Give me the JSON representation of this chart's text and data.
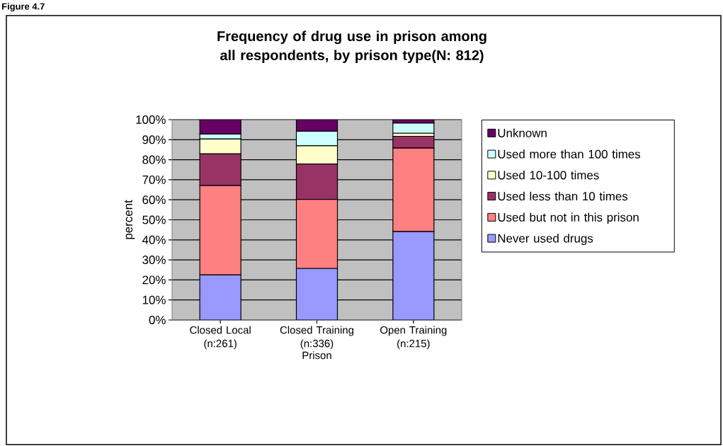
{
  "chart_data": {
    "type": "bar",
    "stacked": true,
    "title": "Frequency of drug use in prison among all respondents, by prison type(N: 812)",
    "xlabel": "Prison",
    "ylabel": "percent",
    "annotations": [
      "Figure 4.7"
    ],
    "categories": [
      "Closed Local (n:261)",
      "Closed Training (n:336)",
      "Open Training (n:215)"
    ],
    "series": [
      {
        "name": "Never used drugs",
        "color": "#9999ff",
        "values": [
          22.5,
          25.7,
          44.1
        ]
      },
      {
        "name": "Used but not in this prison",
        "color": "#ff8080",
        "values": [
          44.6,
          34.5,
          41.7
        ]
      },
      {
        "name": "Used less than 10 times",
        "color": "#993366",
        "values": [
          15.8,
          17.7,
          5.9
        ]
      },
      {
        "name": "Used 10-100 times",
        "color": "#ffffcc",
        "values": [
          7.4,
          9.1,
          1.5
        ]
      },
      {
        "name": "Used more than 100 times",
        "color": "#ccffff",
        "values": [
          2.5,
          7.2,
          5.1
        ]
      },
      {
        "name": "Unknown",
        "color": "#660066",
        "values": [
          7.2,
          5.8,
          1.7
        ]
      }
    ],
    "ylim": [
      0,
      100
    ],
    "yticks": [
      {
        "value": 0,
        "label": "0%"
      },
      {
        "value": 10,
        "label": "10%"
      },
      {
        "value": 20,
        "label": "20%"
      },
      {
        "value": 30,
        "label": "30%"
      },
      {
        "value": 40,
        "label": "40%"
      },
      {
        "value": 50,
        "label": "50%"
      },
      {
        "value": 60,
        "label": "60%"
      },
      {
        "value": 70,
        "label": "70%"
      },
      {
        "value": 80,
        "label": "80%"
      },
      {
        "value": 90,
        "label": "90%"
      },
      {
        "value": 100,
        "label": "100%"
      }
    ],
    "grid": "y",
    "legend": "right"
  }
}
